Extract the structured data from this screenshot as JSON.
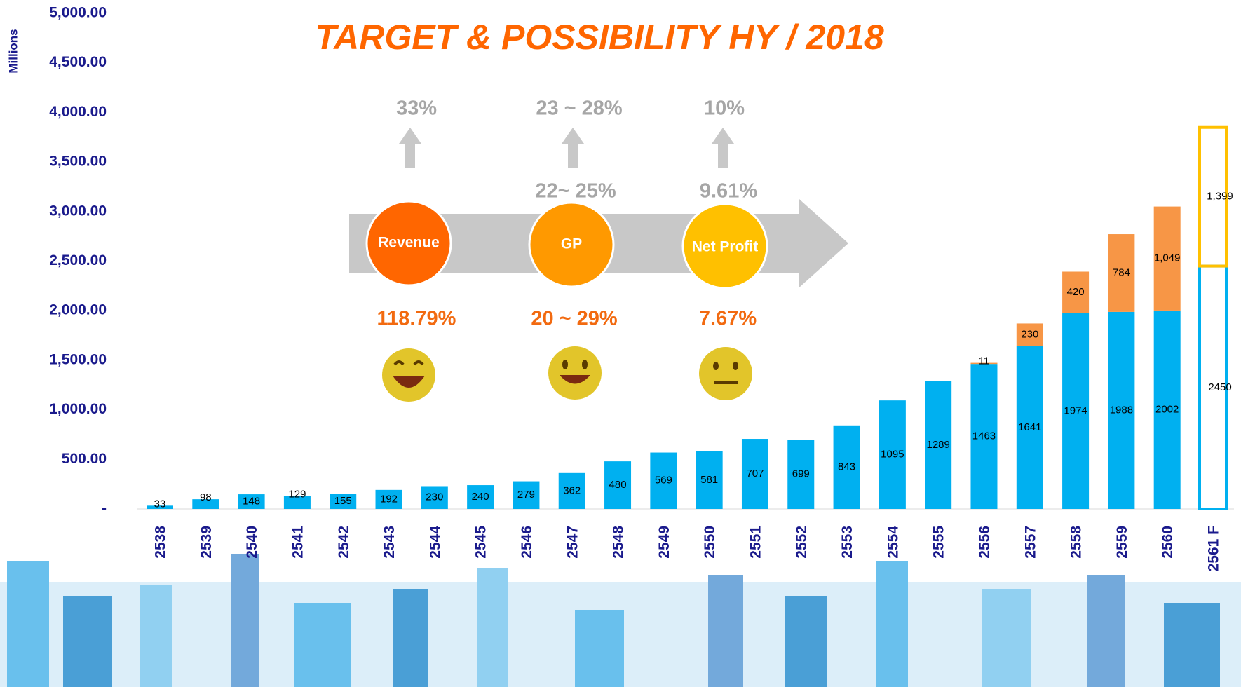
{
  "chart_data": {
    "type": "stacked_bar",
    "title": "TARGET & POSSIBILITY HY / 2018",
    "y_label": "Millions",
    "categories": [
      "2538",
      "2539",
      "2540",
      "2541",
      "2542",
      "2543",
      "2544",
      "2545",
      "2546",
      "2547",
      "2548",
      "2549",
      "2550",
      "2551",
      "2552",
      "2553",
      "2554",
      "2555",
      "2556",
      "2557",
      "2558",
      "2559",
      "2560",
      "2561 F"
    ],
    "series": [
      {
        "color": "#00b0f0",
        "forecast_color": "#00b0f0",
        "values": [
          33,
          98,
          148,
          129,
          155,
          192,
          230,
          240,
          279,
          362,
          480,
          569,
          581,
          707,
          699,
          843,
          1095,
          1289,
          1463,
          1641,
          1974,
          1988,
          2002,
          2450
        ]
      },
      {
        "color": "#f79646",
        "forecast_color": "#ffc000",
        "values": [
          null,
          null,
          null,
          null,
          null,
          null,
          null,
          null,
          null,
          null,
          null,
          null,
          null,
          null,
          null,
          null,
          null,
          null,
          11,
          230,
          420,
          784,
          1049,
          1399
        ],
        "value_labels": [
          null,
          null,
          null,
          null,
          null,
          null,
          null,
          null,
          null,
          null,
          null,
          null,
          null,
          null,
          null,
          null,
          null,
          null,
          "11",
          "230",
          "420",
          "784",
          "1,049",
          "1,399"
        ]
      }
    ],
    "ylim": [
      0,
      5000
    ],
    "yticks": [
      {
        "value": 0,
        "label": "-"
      },
      {
        "value": 500,
        "label": "500.00"
      },
      {
        "value": 1000,
        "label": "1,000.00"
      },
      {
        "value": 1500,
        "label": "1,500.00"
      },
      {
        "value": 2000,
        "label": "2,000.00"
      },
      {
        "value": 2500,
        "label": "2,500.00"
      },
      {
        "value": 3000,
        "label": "3,000.00"
      },
      {
        "value": 3500,
        "label": "3,500.00"
      },
      {
        "value": 4000,
        "label": "4,000.00"
      },
      {
        "value": 4500,
        "label": "4,500.00"
      },
      {
        "value": 5000,
        "label": "5,000.00"
      }
    ],
    "grid": false,
    "annotations": {
      "targets": [
        "33%",
        "23 ~ 28%",
        "10%"
      ],
      "previous": [
        "22~ 25%",
        "9.61%"
      ],
      "metrics": [
        "Revenue",
        "GP",
        "Net Profit"
      ],
      "results": [
        "118.79%",
        "20 ~ 29%",
        "7.67%"
      ]
    }
  }
}
